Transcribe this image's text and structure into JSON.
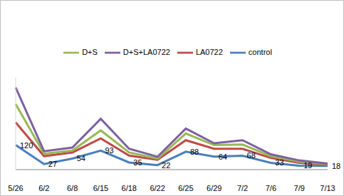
{
  "chart_data": {
    "type": "line",
    "categories": [
      "5/26",
      "6/2",
      "6/8",
      "6/15",
      "6/18",
      "6/22",
      "6/25",
      "6/29",
      "7/2",
      "7/6",
      "7/9",
      "7/13"
    ],
    "series": [
      {
        "name": "control",
        "color": "#4a7ebb",
        "values": [
          120,
          27,
          54,
          93,
          35,
          22,
          88,
          64,
          68,
          33,
          19,
          18
        ],
        "data_labels": true
      },
      {
        "name": "LA0722",
        "color": "#be4b48",
        "values": [
          231,
          66,
          84,
          153,
          69,
          48,
          144,
          102,
          102,
          57,
          33,
          24
        ]
      },
      {
        "name": "D+S",
        "color": "#98b954",
        "values": [
          321,
          78,
          93,
          192,
          84,
          54,
          177,
          120,
          123,
          66,
          39,
          27
        ]
      },
      {
        "name": "D+S+LA0722",
        "color": "#7d60a0",
        "values": [
          402,
          90,
          108,
          249,
          102,
          63,
          201,
          129,
          144,
          75,
          45,
          30
        ]
      }
    ],
    "ylim": [
      0,
      450
    ],
    "tick_labels": "x",
    "legend": "top"
  }
}
